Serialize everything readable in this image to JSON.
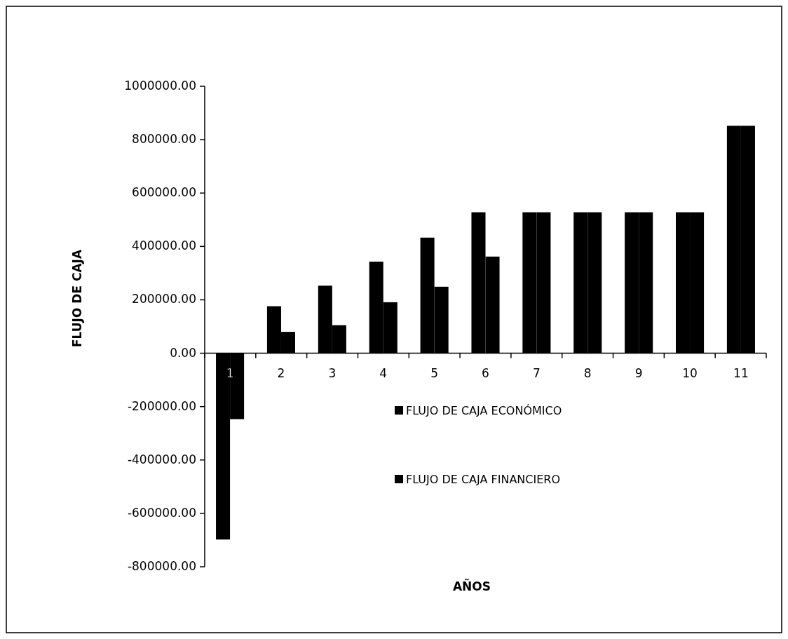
{
  "chart_data": {
    "type": "bar",
    "xlabel": "AÑOS",
    "ylabel": "FLUJO DE CAJA",
    "categories": [
      "1",
      "2",
      "3",
      "4",
      "5",
      "6",
      "7",
      "8",
      "9",
      "10",
      "11"
    ],
    "series": [
      {
        "name": "FLUJO DE CAJA ECONÓMICO",
        "color": "#000000",
        "values": [
          -698000,
          176000,
          253000,
          343000,
          433000,
          528000,
          528000,
          528000,
          528000,
          528000,
          852000
        ]
      },
      {
        "name": "FLUJO DE CAJA FINANCIERO",
        "color": "#000000",
        "values": [
          -247000,
          80000,
          105000,
          191000,
          249000,
          362000,
          528000,
          528000,
          528000,
          528000,
          852000
        ]
      }
    ],
    "ylim": [
      -800000,
      1000000
    ],
    "yticks": [
      {
        "value": -800000,
        "label": "-800000.00"
      },
      {
        "value": -600000,
        "label": "-600000.00"
      },
      {
        "value": -400000,
        "label": "-400000.00"
      },
      {
        "value": -200000,
        "label": "-200000.00"
      },
      {
        "value": 0,
        "label": "0.00"
      },
      {
        "value": 200000,
        "label": "200000.00"
      },
      {
        "value": 400000,
        "label": "400000.00"
      },
      {
        "value": 600000,
        "label": "600000.00"
      },
      {
        "value": 800000,
        "label": "800000.00"
      },
      {
        "value": 1000000,
        "label": "1000000.00"
      }
    ],
    "grid": false,
    "legend": "bottom right"
  }
}
